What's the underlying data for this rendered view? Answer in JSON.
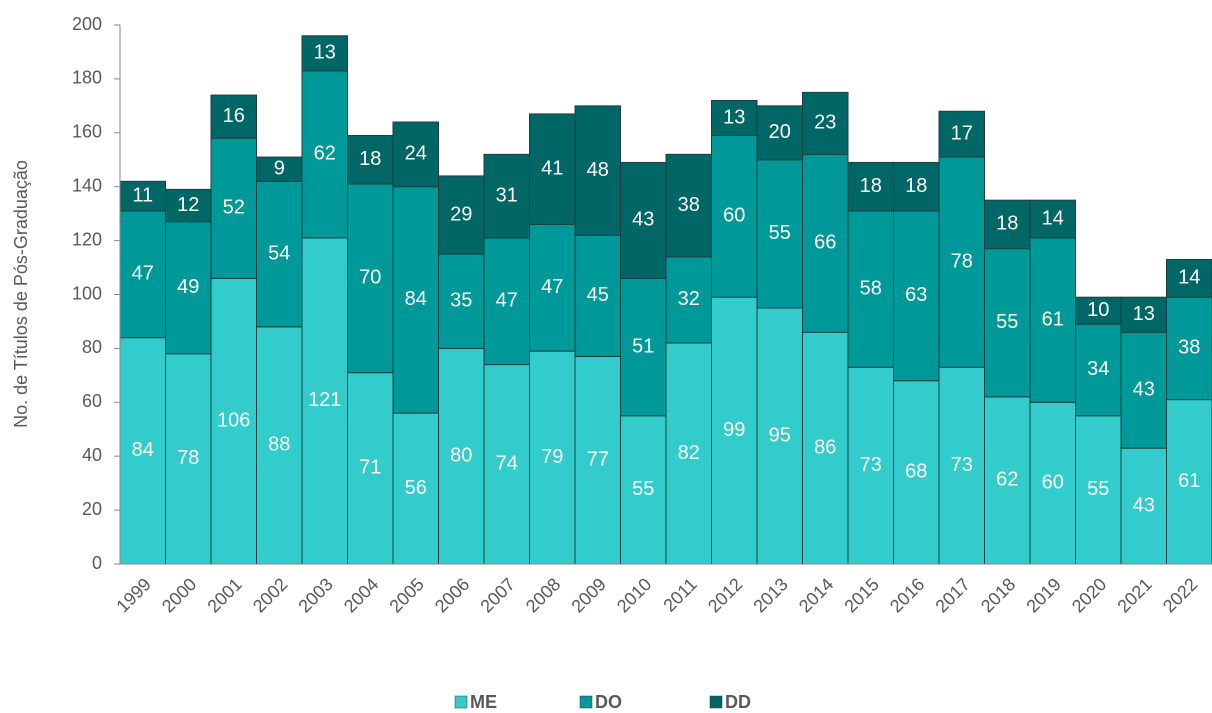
{
  "chart_data": {
    "type": "stacked_bar",
    "y_label": "No. de Títulos de Pós-Graduação",
    "categories": [
      "1999",
      "2000",
      "2001",
      "2002",
      "2003",
      "2004",
      "2005",
      "2006",
      "2007",
      "2008",
      "2009",
      "2010",
      "2011",
      "2012",
      "2013",
      "2014",
      "2015",
      "2016",
      "2017",
      "2018",
      "2019",
      "2020",
      "2021",
      "2022"
    ],
    "series": [
      {
        "name": "ME",
        "color": "#33cccc",
        "values": [
          84,
          78,
          106,
          88,
          121,
          71,
          56,
          80,
          74,
          79,
          77,
          55,
          82,
          99,
          95,
          86,
          73,
          68,
          73,
          62,
          60,
          55,
          43,
          61
        ]
      },
      {
        "name": "DO",
        "color": "#009999",
        "values": [
          47,
          49,
          52,
          54,
          62,
          70,
          84,
          35,
          47,
          47,
          45,
          51,
          32,
          60,
          55,
          66,
          58,
          63,
          78,
          55,
          61,
          34,
          43,
          38
        ]
      },
      {
        "name": "DD",
        "color": "#006666",
        "values": [
          11,
          12,
          16,
          9,
          13,
          18,
          24,
          29,
          31,
          41,
          48,
          43,
          38,
          13,
          20,
          23,
          18,
          18,
          17,
          18,
          14,
          10,
          13,
          14
        ]
      }
    ],
    "ylim": [
      0,
      200
    ],
    "yticks": [
      0,
      20,
      40,
      60,
      80,
      100,
      120,
      140,
      160,
      180,
      200
    ],
    "legend": "bottom"
  }
}
